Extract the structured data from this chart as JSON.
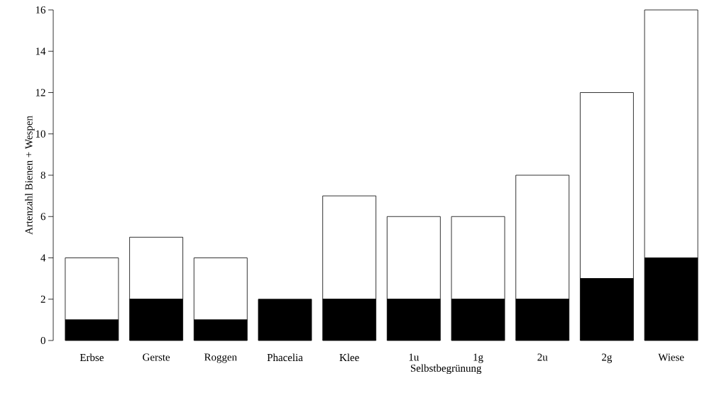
{
  "chart_data": {
    "type": "bar",
    "stacked": true,
    "ylabel": "Artenzahl Bienen + Wespen",
    "categories": [
      "Erbse",
      "Gerste",
      "Roggen",
      "Phacelia",
      "Klee",
      "1u",
      "1g",
      "2u",
      "2g",
      "Wiese"
    ],
    "series": [
      {
        "color": "#000000",
        "values": [
          1,
          2,
          1,
          2,
          2,
          2,
          2,
          2,
          3,
          4
        ]
      },
      {
        "color": "#ffffff",
        "values": [
          3,
          3,
          3,
          0,
          5,
          4,
          4,
          6,
          9,
          12
        ]
      }
    ],
    "ylim": [
      0,
      16
    ],
    "yticks": [
      0,
      2,
      4,
      6,
      8,
      10,
      12,
      14,
      16
    ],
    "annotations": [
      "Selbstbegrünung"
    ]
  }
}
